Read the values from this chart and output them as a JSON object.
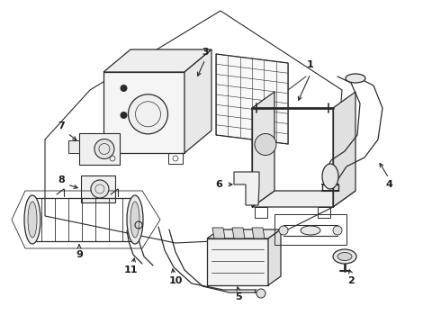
{
  "bg_color": "#ffffff",
  "line_color": "#2a2a2a",
  "fig_width": 4.9,
  "fig_height": 3.6,
  "dpi": 100,
  "label_fontsize": 8,
  "label_color": "#1a1a1a"
}
